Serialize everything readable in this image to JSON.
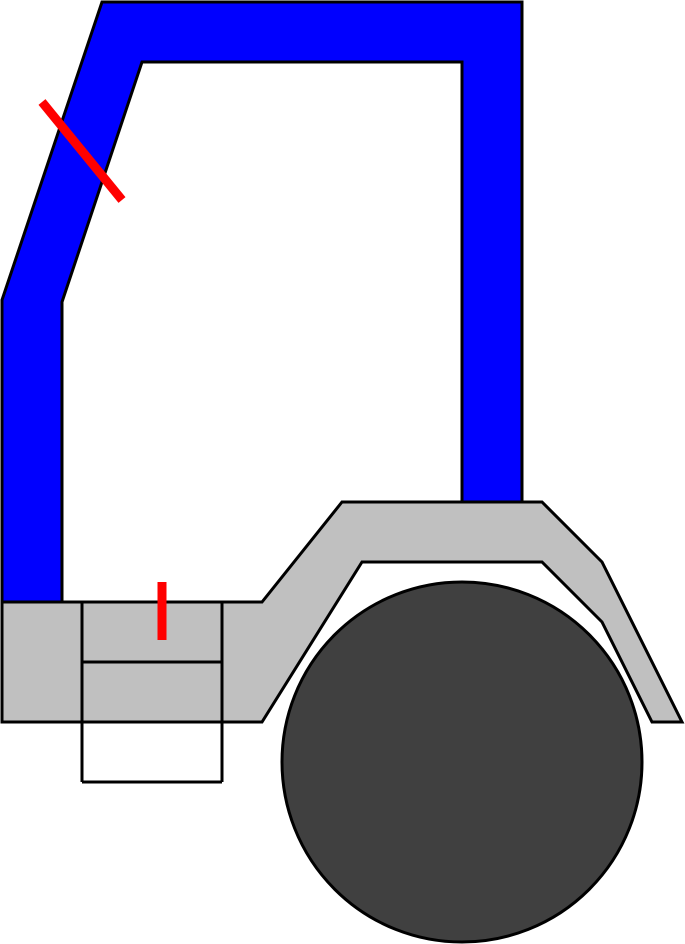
{
  "diagram": {
    "subject": "truck-cab-side-view",
    "colors": {
      "background": "#ffffff",
      "cab_frame": "#0000ff",
      "body_panel": "#c0c0c0",
      "wheel": "#404040",
      "outline": "#000000",
      "markers": "#ff0000"
    },
    "parts": {
      "cab_frame": "cab-frame",
      "fender": "fender",
      "lower_body": "lower-body",
      "step": "step",
      "wheel": "wheel"
    },
    "markers": {
      "pillar_marker": "cut-marker",
      "sill_marker": "cut-marker"
    }
  }
}
